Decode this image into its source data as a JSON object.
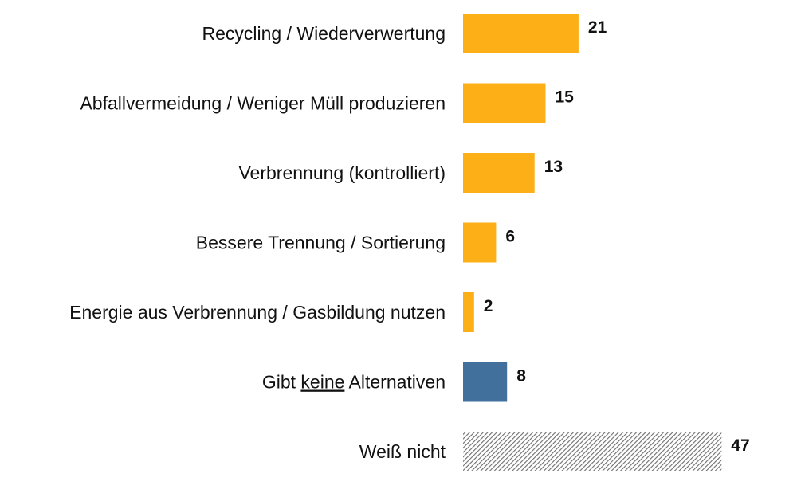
{
  "chart_data": {
    "type": "bar",
    "orientation": "horizontal",
    "categories": [
      "Recycling / Wiederverwertung",
      "Abfallvermeidung / Weniger Müll produzieren",
      "Verbrennung (kontrolliert)",
      "Bessere Trennung / Sortierung",
      "Energie aus Verbrennung / Gasbildung nutzen",
      "Gibt keine Alternativen",
      "Weiß nicht"
    ],
    "values": [
      21,
      15,
      13,
      6,
      2,
      8,
      47
    ],
    "value_labels": [
      "21",
      "15",
      "13",
      "6",
      "2",
      "8",
      "47"
    ],
    "bar_styles": [
      "solid-orange",
      "solid-orange",
      "solid-orange",
      "solid-orange",
      "solid-orange",
      "solid-blue",
      "hatched-gray"
    ],
    "underlined_word": {
      "category_index": 5,
      "word": "keine"
    },
    "colors": {
      "orange": "#FCAF17",
      "blue": "#41709C",
      "hatch": "#6E6E6E"
    },
    "grid": false,
    "legend": "none"
  }
}
